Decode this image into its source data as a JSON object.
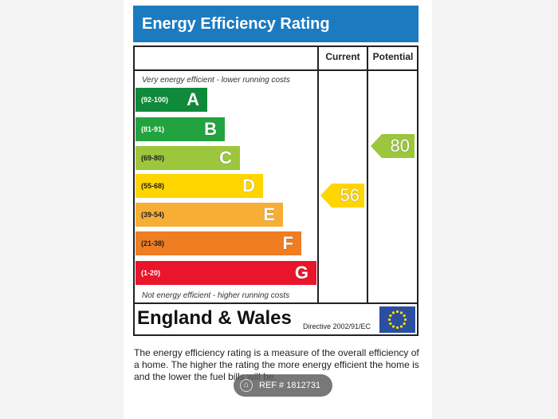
{
  "title": "Energy Efficiency Rating",
  "columns": {
    "current": "Current",
    "potential": "Potential"
  },
  "top_caption": "Very energy efficient - lower running costs",
  "bottom_caption": "Not energy efficient - higher running costs",
  "bands": [
    {
      "range": "(92-100)",
      "letter": "A",
      "color": "#0e8a3a",
      "range_color": "#ffffff"
    },
    {
      "range": "(81-91)",
      "letter": "B",
      "color": "#22a33f",
      "range_color": "#ffffff"
    },
    {
      "range": "(69-80)",
      "letter": "C",
      "color": "#9cc63b",
      "range_color": "#222222"
    },
    {
      "range": "(55-68)",
      "letter": "D",
      "color": "#ffd500",
      "range_color": "#222222"
    },
    {
      "range": "(39-54)",
      "letter": "E",
      "color": "#f6ae35",
      "range_color": "#222222"
    },
    {
      "range": "(21-38)",
      "letter": "F",
      "color": "#ef7d22",
      "range_color": "#222222"
    },
    {
      "range": "(1-20)",
      "letter": "G",
      "color": "#e9152b",
      "range_color": "#ffffff"
    }
  ],
  "current_rating": {
    "value": "56",
    "band": "D",
    "color": "#ffd500"
  },
  "potential_rating": {
    "value": "80",
    "band": "C",
    "color": "#9cc63b"
  },
  "region": "England & Wales",
  "directive": "Directive 2002/91/EC",
  "description": "The energy efficiency rating is a measure of the overall efficiency of a home. The higher the rating the more energy efficient the home is and the lower the fuel bills will be.",
  "ref_badge": {
    "icon": "home-icon",
    "text": "REF # 1812731"
  }
}
